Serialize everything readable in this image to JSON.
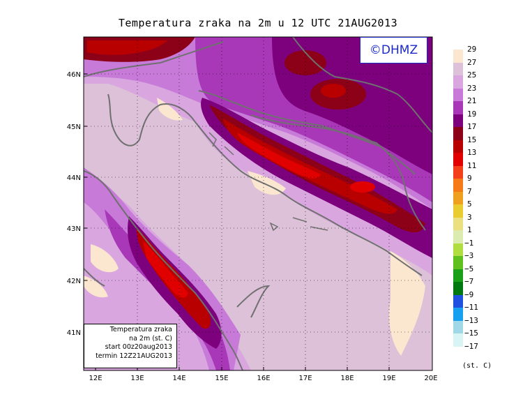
{
  "title": "Temperatura zraka na 2m u 12 UTC 21AUG2013",
  "logo_text": "©DHMZ",
  "info_box": {
    "line1": "Temperatura zraka",
    "line2": "na 2m (st. C)",
    "line3": "start 00z20aug2013",
    "line4": "termin 12Z21AUG2013"
  },
  "axes": {
    "lon_labels": [
      "12E",
      "13E",
      "14E",
      "15E",
      "16E",
      "17E",
      "18E",
      "19E",
      "20E"
    ],
    "lat_labels": [
      "41N",
      "42N",
      "43N",
      "44N",
      "45N",
      "46N"
    ]
  },
  "legend": {
    "units": "(st. C)",
    "ticks": [
      "29",
      "27",
      "25",
      "23",
      "21",
      "19",
      "17",
      "15",
      "13",
      "11",
      "9",
      "7",
      "5",
      "3",
      "1",
      "−1",
      "−3",
      "−5",
      "−7",
      "−9",
      "−11",
      "−13",
      "−15",
      "−17"
    ],
    "colors": [
      "#fbe6d0",
      "#dcc1d8",
      "#d9a6e0",
      "#c77ad8",
      "#a838b8",
      "#7d007d",
      "#8c0018",
      "#b80000",
      "#e00000",
      "#f4401a",
      "#f47a1a",
      "#f0a020",
      "#e8cc30",
      "#eae080",
      "#dcecb0",
      "#b0de40",
      "#60c020",
      "#18a018",
      "#007a10",
      "#2050e0",
      "#18a0f0",
      "#a0d8e8",
      "#d8f4f4"
    ]
  }
}
